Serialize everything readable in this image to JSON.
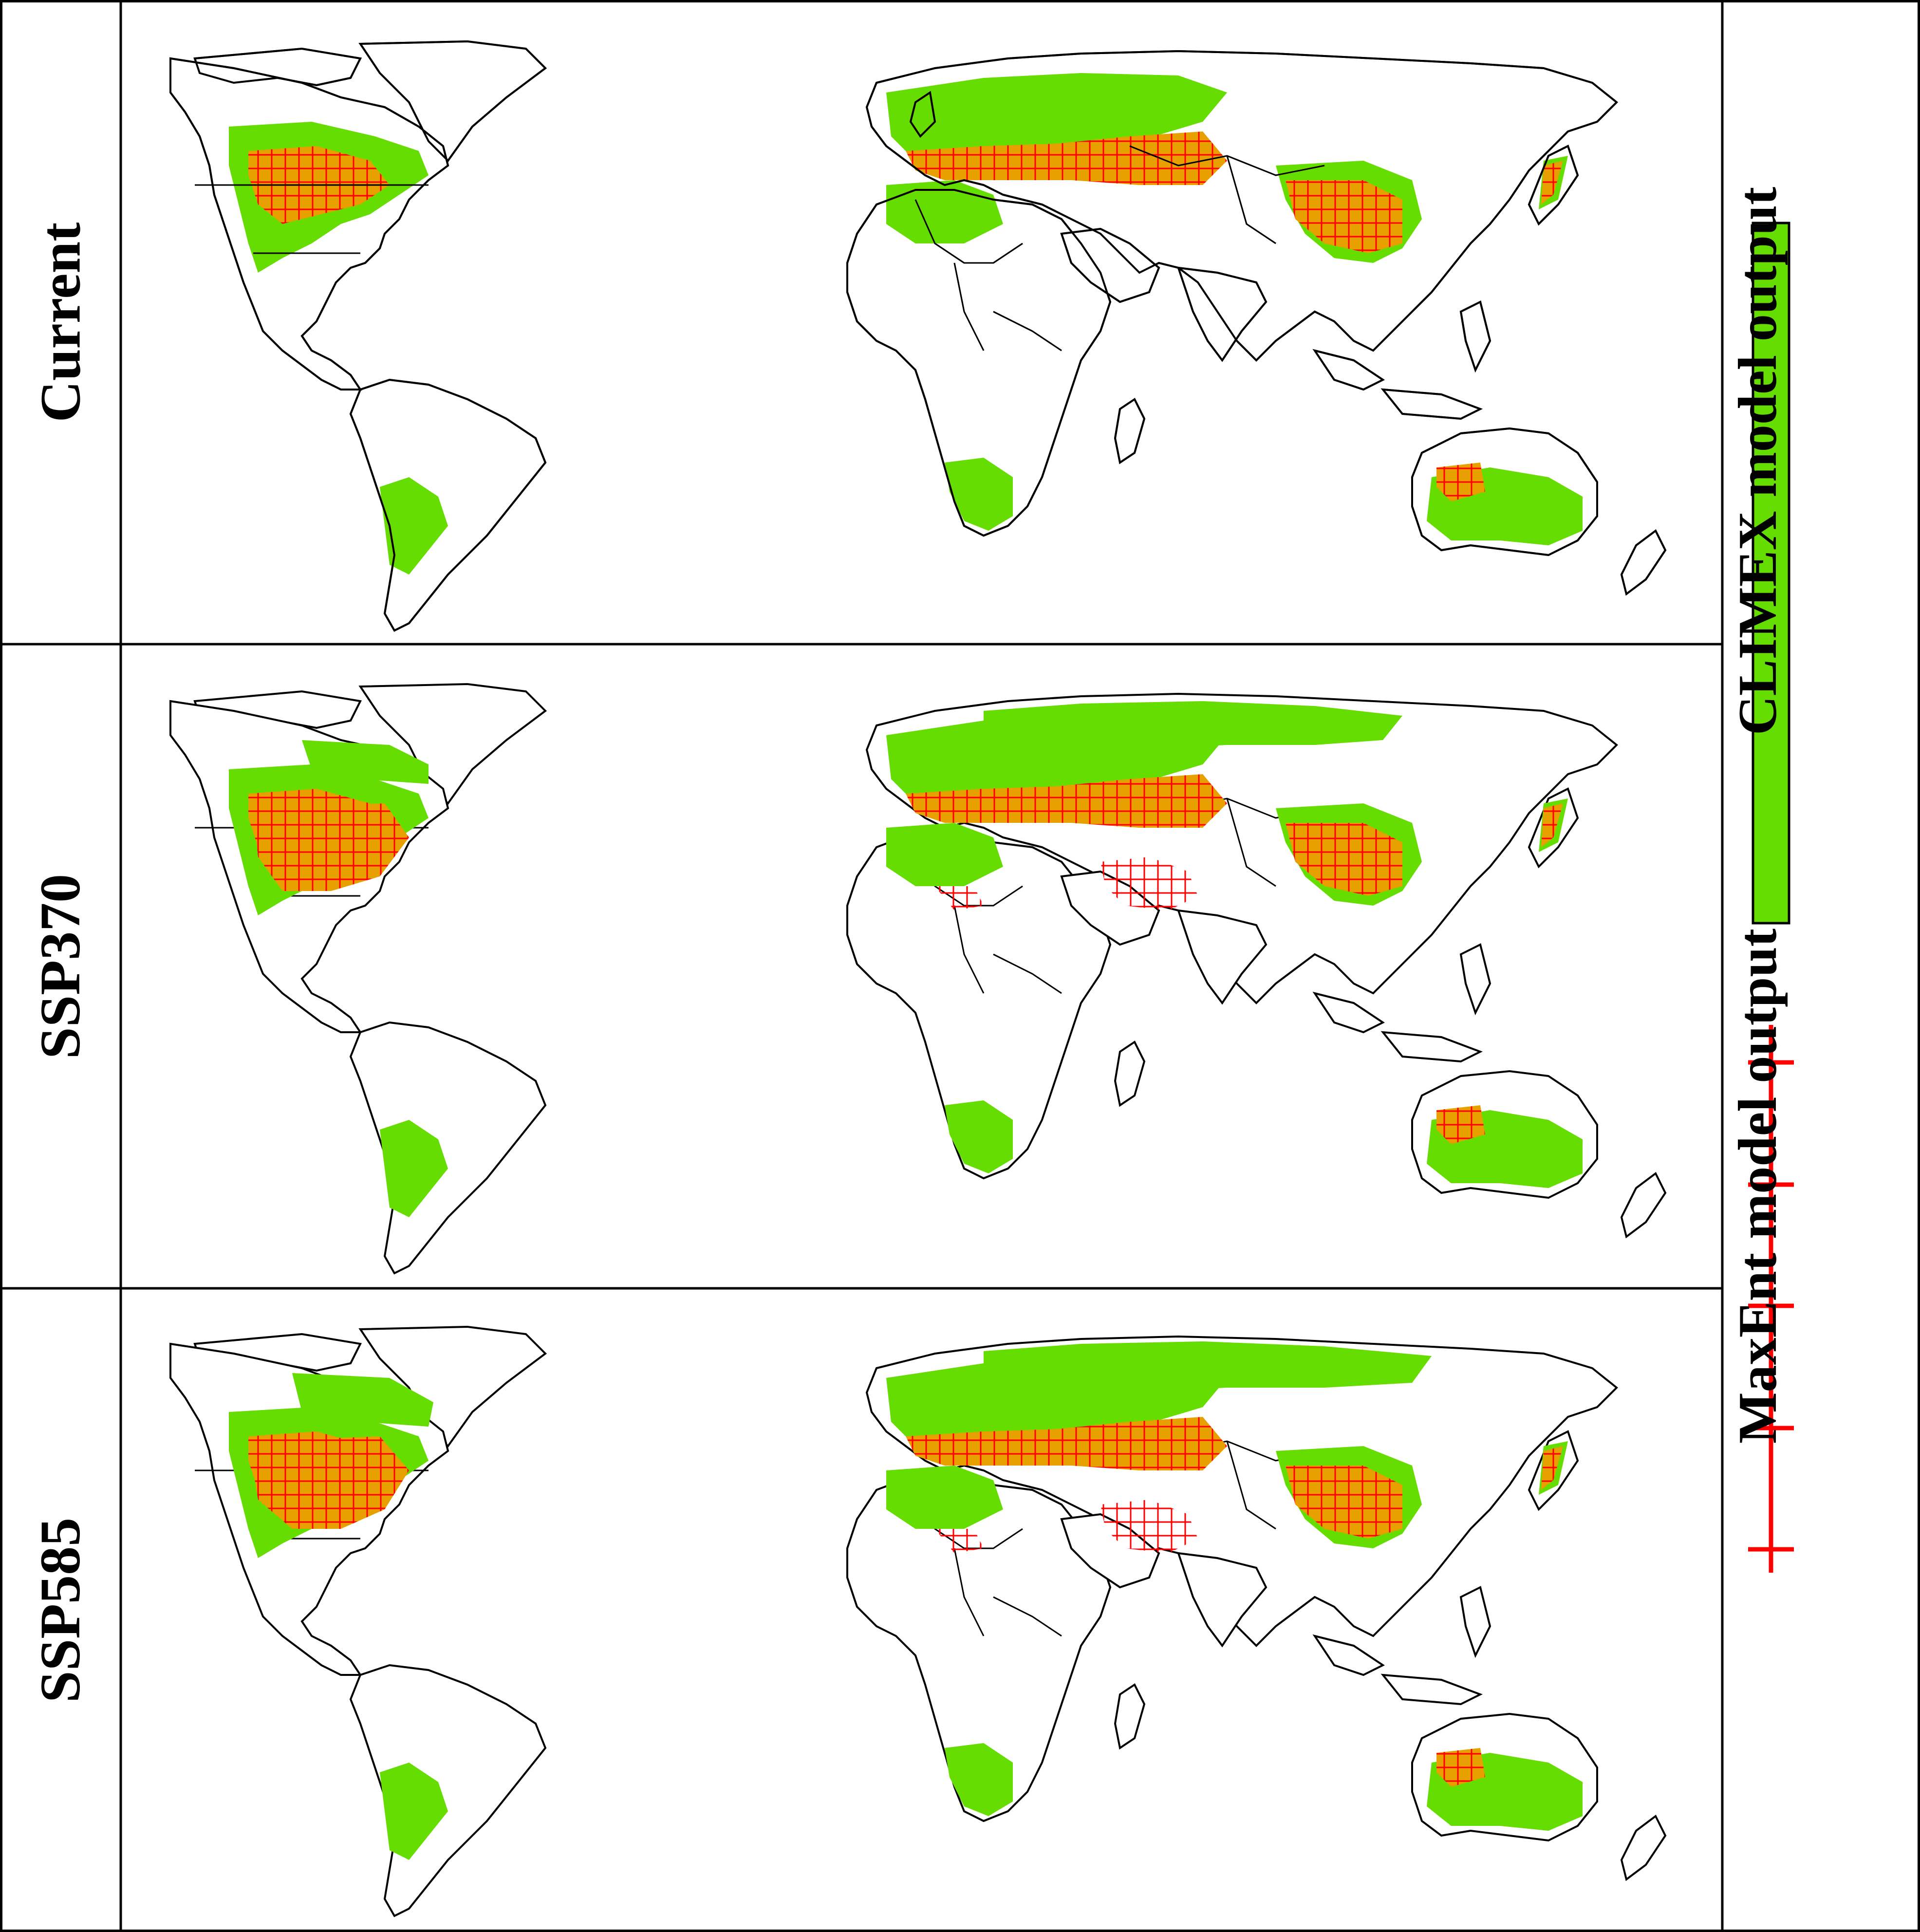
{
  "panels": [
    {
      "label": "Current"
    },
    {
      "label": "SSP370"
    },
    {
      "label": "SSP585"
    }
  ],
  "legend": {
    "climex_label": "CLIMEX model output",
    "maxent_label": "MaxEnt model output"
  },
  "colors": {
    "climex": "#66dd00",
    "maxent": "#ff0000",
    "overlap": "#e8a000",
    "coast": "#000000"
  }
}
